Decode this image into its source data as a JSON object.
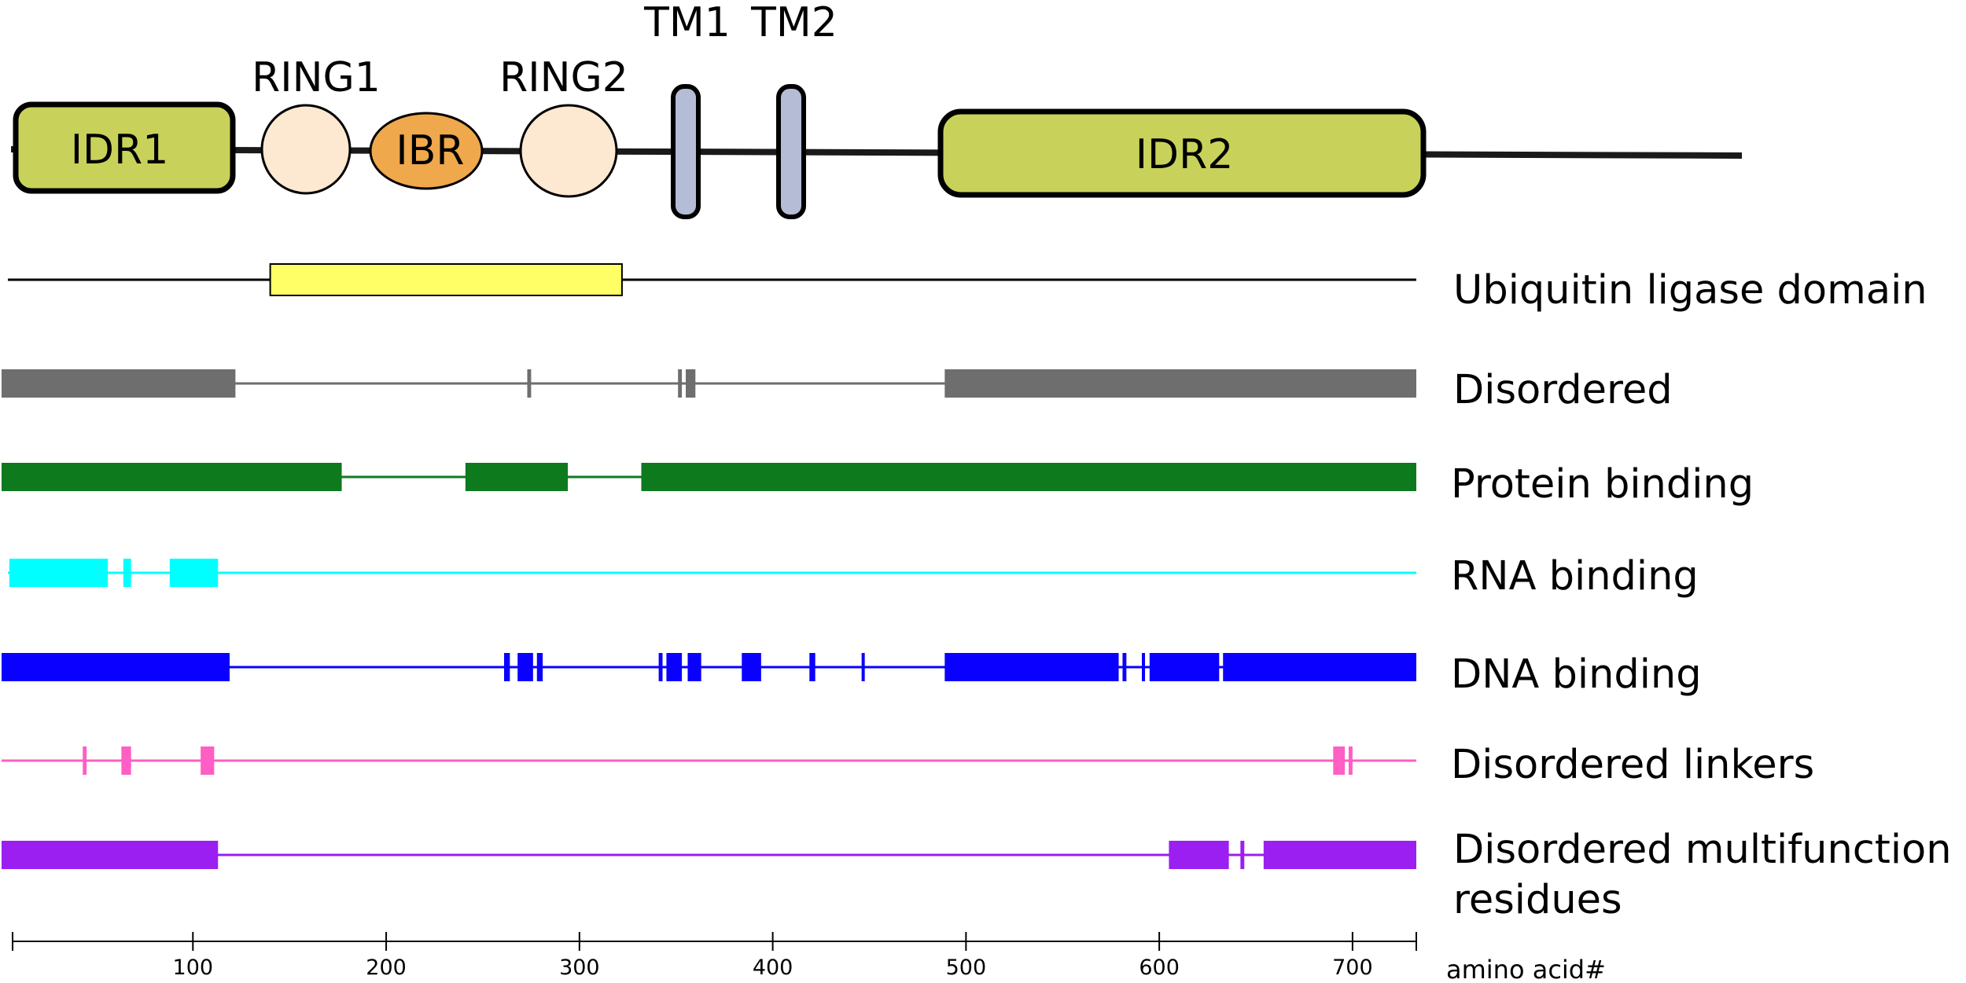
{
  "diagram": {
    "protein_length": 733,
    "domains": {
      "idr1": "IDR1",
      "ring1": "RING1",
      "ibr": "IBR",
      "ring2": "RING2",
      "tm1": "TM1",
      "tm2": "TM2",
      "idr2": "IDR2"
    },
    "colors": {
      "idr_fill": "#c8d25a",
      "ring_fill": "#fde8d2",
      "ibr_fill": "#f0a84c",
      "tm_fill": "#b4bcd6",
      "ubiquitin": "#ffff66",
      "disordered": "#6e6e6e",
      "protein_binding": "#0d7a1e",
      "rna_binding": "#00ffff",
      "dna_binding": "#0a00ff",
      "disordered_linkers": "#ff5ec4",
      "multifunction": "#9b1ff0"
    },
    "tracks": [
      {
        "id": "ubiquitin",
        "label": "Ubiquitin ligase domain",
        "segments": [
          [
            140,
            322
          ]
        ]
      },
      {
        "id": "disordered",
        "label": "Disordered",
        "segments": [
          [
            1,
            122
          ],
          [
            273,
            275
          ],
          [
            351,
            353
          ],
          [
            355,
            360
          ],
          [
            489,
            733
          ]
        ]
      },
      {
        "id": "protein_binding",
        "label": "Protein binding",
        "segments": [
          [
            1,
            177
          ],
          [
            241,
            294
          ],
          [
            332,
            733
          ]
        ]
      },
      {
        "id": "rna_binding",
        "label": "RNA binding",
        "segments": [
          [
            5,
            56
          ],
          [
            64,
            68
          ],
          [
            88,
            113
          ]
        ]
      },
      {
        "id": "dna_binding",
        "label": "DNA binding",
        "segments": [
          [
            1,
            119
          ],
          [
            261,
            264
          ],
          [
            268,
            276
          ],
          [
            278,
            281
          ],
          [
            341,
            343
          ],
          [
            345,
            353
          ],
          [
            356,
            363
          ],
          [
            384,
            394
          ],
          [
            419,
            422
          ],
          [
            446,
            447
          ],
          [
            489,
            579
          ],
          [
            581,
            583
          ],
          [
            591,
            592
          ],
          [
            595,
            631
          ],
          [
            633,
            733
          ]
        ]
      },
      {
        "id": "disordered_linkers",
        "label": "Disordered linkers",
        "segments": [
          [
            43,
            45
          ],
          [
            63,
            68
          ],
          [
            104,
            111
          ],
          [
            690,
            696
          ],
          [
            698,
            700
          ]
        ]
      },
      {
        "id": "multifunction",
        "label_line1": "Disordered multifunction",
        "label_line2": "residues",
        "segments": [
          [
            1,
            113
          ],
          [
            605,
            636
          ],
          [
            642,
            644
          ],
          [
            654,
            733
          ]
        ]
      }
    ],
    "axis": {
      "ticks": [
        100,
        200,
        300,
        400,
        500,
        600,
        700
      ],
      "tick_labels": [
        "100",
        "200",
        "300",
        "400",
        "500",
        "600",
        "700"
      ],
      "label": "amino acid#"
    }
  }
}
